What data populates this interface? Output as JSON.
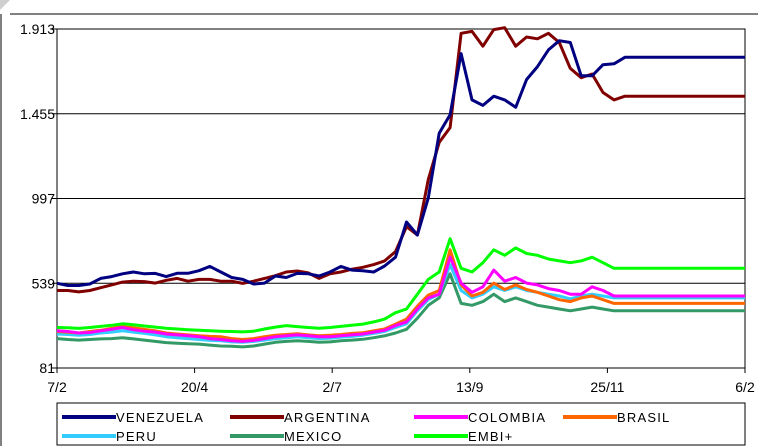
{
  "chart_data": {
    "type": "line",
    "title": "",
    "xlabel": "",
    "ylabel": "",
    "x_tick_labels": [
      "7/2",
      "20/4",
      "2/7",
      "13/9",
      "25/11",
      "6/2"
    ],
    "y_tick_labels": [
      "81",
      "539",
      "997",
      "1.455",
      "1.913"
    ],
    "y_ticks": [
      81,
      539,
      997,
      1455,
      1913
    ],
    "ylim": [
      81,
      1913
    ],
    "n_points": 64,
    "grid": "horizontal",
    "legend": "bottom",
    "series": [
      {
        "name": "VENEZUELA",
        "color": "#000080",
        "values": [
          539,
          527,
          527,
          535,
          565,
          575,
          590,
          600,
          590,
          592,
          575,
          593,
          593,
          607,
          630,
          600,
          570,
          560,
          535,
          540,
          578,
          570,
          592,
          590,
          578,
          600,
          630,
          610,
          607,
          600,
          632,
          680,
          870,
          800,
          1000,
          1350,
          1450,
          1780,
          1530,
          1500,
          1550,
          1530,
          1490,
          1640,
          1710,
          1800,
          1850,
          1840,
          1660,
          1660,
          1720,
          1725,
          1760,
          1760,
          1760,
          1760,
          1760,
          1760,
          1760,
          1760,
          1760,
          1760,
          1760,
          1760
        ]
      },
      {
        "name": "ARGENTINA",
        "color": "#800000",
        "values": [
          500,
          500,
          492,
          500,
          515,
          530,
          545,
          550,
          548,
          540,
          555,
          565,
          550,
          560,
          560,
          550,
          550,
          538,
          550,
          565,
          580,
          600,
          605,
          595,
          565,
          590,
          600,
          615,
          625,
          640,
          660,
          710,
          845,
          800,
          1100,
          1300,
          1380,
          1890,
          1900,
          1820,
          1910,
          1920,
          1820,
          1870,
          1860,
          1890,
          1840,
          1700,
          1650,
          1670,
          1570,
          1530,
          1550,
          1550,
          1550,
          1550,
          1550,
          1550,
          1550,
          1550,
          1550,
          1550,
          1550,
          1550
        ]
      },
      {
        "name": "COLOMBIA",
        "color": "#ff00ff",
        "values": [
          282,
          278,
          270,
          273,
          282,
          290,
          300,
          288,
          280,
          275,
          265,
          260,
          255,
          250,
          240,
          235,
          228,
          225,
          230,
          240,
          250,
          255,
          260,
          255,
          250,
          250,
          255,
          260,
          265,
          275,
          285,
          310,
          330,
          400,
          460,
          480,
          680,
          540,
          490,
          520,
          610,
          550,
          570,
          540,
          530,
          510,
          500,
          480,
          480,
          520,
          500,
          470,
          470,
          470,
          470,
          470,
          470,
          470,
          470,
          470,
          470,
          470,
          470,
          470
        ]
      },
      {
        "name": "BRASIL",
        "color": "#ff6600",
        "values": [
          278,
          275,
          270,
          278,
          285,
          295,
          305,
          298,
          290,
          282,
          270,
          265,
          260,
          255,
          252,
          250,
          240,
          235,
          240,
          250,
          258,
          262,
          266,
          260,
          255,
          258,
          262,
          268,
          272,
          282,
          292,
          318,
          345,
          415,
          475,
          500,
          720,
          530,
          470,
          490,
          540,
          505,
          530,
          505,
          490,
          470,
          450,
          440,
          460,
          470,
          450,
          430,
          430,
          430,
          430,
          430,
          430,
          430,
          430,
          430,
          430,
          430,
          430,
          430
        ]
      },
      {
        "name": "PERU",
        "color": "#33ccff",
        "values": [
          265,
          262,
          258,
          262,
          270,
          275,
          282,
          275,
          268,
          260,
          250,
          245,
          240,
          235,
          230,
          228,
          222,
          220,
          225,
          232,
          240,
          245,
          250,
          245,
          240,
          242,
          248,
          252,
          258,
          268,
          278,
          300,
          320,
          390,
          450,
          480,
          640,
          500,
          460,
          480,
          520,
          500,
          520,
          500,
          490,
          480,
          470,
          455,
          470,
          480,
          470,
          460,
          460,
          460,
          460,
          460,
          460,
          460,
          460,
          460,
          460,
          460,
          460,
          460
        ]
      },
      {
        "name": "MEXICO",
        "color": "#339966",
        "values": [
          240,
          235,
          232,
          235,
          238,
          240,
          245,
          238,
          232,
          225,
          218,
          215,
          212,
          210,
          205,
          200,
          198,
          195,
          200,
          210,
          220,
          225,
          228,
          225,
          220,
          222,
          228,
          232,
          236,
          245,
          255,
          270,
          290,
          350,
          420,
          460,
          590,
          430,
          420,
          440,
          480,
          440,
          460,
          440,
          420,
          410,
          400,
          390,
          400,
          410,
          400,
          390,
          390,
          390,
          390,
          390,
          390,
          390,
          390,
          390,
          390,
          390,
          390,
          390
        ]
      },
      {
        "name": "EMBI+",
        "color": "#00ff00",
        "values": [
          300,
          298,
          295,
          300,
          306,
          312,
          320,
          315,
          308,
          302,
          296,
          292,
          288,
          285,
          282,
          280,
          278,
          276,
          280,
          292,
          302,
          310,
          305,
          300,
          296,
          300,
          306,
          312,
          318,
          330,
          345,
          380,
          400,
          480,
          560,
          600,
          780,
          620,
          600,
          650,
          720,
          690,
          730,
          700,
          690,
          670,
          660,
          650,
          660,
          680,
          650,
          620,
          620,
          620,
          620,
          620,
          620,
          620,
          620,
          620,
          620,
          620,
          620,
          620
        ]
      }
    ]
  }
}
